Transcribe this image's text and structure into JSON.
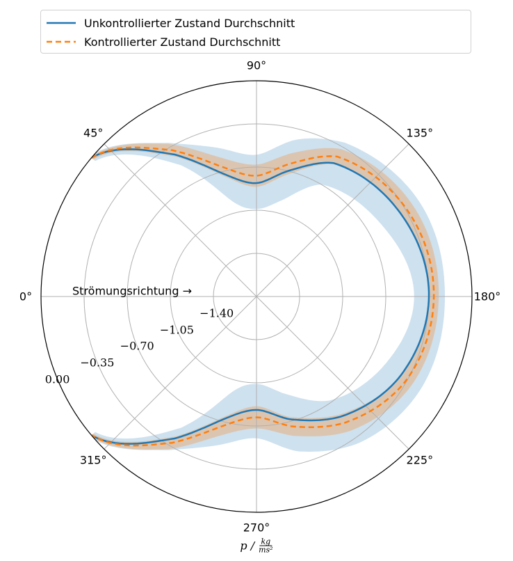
{
  "chart_data": {
    "type": "polar-line",
    "angle_unit": "degrees",
    "theta_zero": "left",
    "theta_direction": "clockwise",
    "angle_tick_labels": [
      "0°",
      "45°",
      "90°",
      "135°",
      "180°",
      "225°",
      "270°",
      "315°"
    ],
    "angle_ticks": [
      0,
      45,
      90,
      135,
      180,
      225,
      270,
      315
    ],
    "r_tick_labels": [
      "−1.40",
      "−1.05",
      "−0.70",
      "−0.35",
      "0.00"
    ],
    "r_ticks": [
      -1.4,
      -1.05,
      -0.7,
      -0.35,
      0.0
    ],
    "rlim": [
      -1.75,
      0.0
    ],
    "grid": true,
    "legend_position": "top",
    "annotation": "Strömungsrichtung →",
    "xlabel_prefix": "p /",
    "xlabel_num": "kg",
    "xlabel_den": "ms²",
    "series": [
      {
        "name": "Unkontrollierter Zustand Durchschnitt",
        "color": "#1f77b4",
        "linestyle": "solid",
        "band_color": "#1f77b4",
        "angles": [
          40,
          60,
          75,
          90,
          105,
          120,
          150,
          180,
          210,
          235,
          255,
          270,
          285,
          300,
          320
        ],
        "values": [
          0.0,
          -0.42,
          -0.72,
          -0.83,
          -0.69,
          -0.5,
          -0.4,
          -0.35,
          -0.42,
          -0.56,
          -0.72,
          -0.83,
          -0.72,
          -0.42,
          0.0
        ],
        "band_upper": [
          0.02,
          -0.31,
          -0.5,
          -0.6,
          -0.43,
          -0.31,
          -0.22,
          -0.22,
          -0.22,
          -0.3,
          -0.45,
          -0.6,
          -0.5,
          -0.31,
          0.02
        ],
        "band_lower": [
          -0.04,
          -0.52,
          -0.94,
          -1.04,
          -0.94,
          -0.7,
          -0.58,
          -0.47,
          -0.58,
          -0.72,
          -0.94,
          -1.04,
          -0.94,
          -0.52,
          -0.04
        ]
      },
      {
        "name": "Kontrollierter Zustand Durchschnitt",
        "color": "#ff7f0e",
        "linestyle": "dashed",
        "band_color": "#ff7f0e",
        "angles": [
          40,
          60,
          75,
          90,
          105,
          120,
          150,
          180,
          210,
          235,
          255,
          270,
          285,
          300,
          320
        ],
        "values": [
          0.0,
          -0.38,
          -0.66,
          -0.77,
          -0.63,
          -0.44,
          -0.34,
          -0.31,
          -0.36,
          -0.5,
          -0.66,
          -0.77,
          -0.66,
          -0.38,
          0.0
        ],
        "band_upper": [
          0.01,
          -0.32,
          -0.58,
          -0.68,
          -0.54,
          -0.37,
          -0.28,
          -0.27,
          -0.3,
          -0.42,
          -0.58,
          -0.68,
          -0.58,
          -0.32,
          0.01
        ],
        "band_lower": [
          -0.02,
          -0.44,
          -0.74,
          -0.86,
          -0.72,
          -0.51,
          -0.4,
          -0.35,
          -0.42,
          -0.58,
          -0.74,
          -0.86,
          -0.74,
          -0.44,
          -0.02
        ]
      }
    ]
  }
}
